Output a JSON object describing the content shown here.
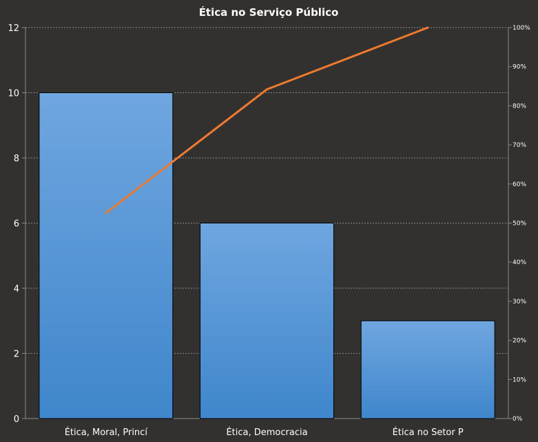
{
  "chart_data": {
    "type": "bar",
    "title": "Ética no Serviço Público",
    "categories": [
      "Ética, Moral, Princí",
      "Ética, Democracia",
      "Ética no Setor P"
    ],
    "series": [
      {
        "type": "bar",
        "axis": "left",
        "values": [
          10,
          6,
          3
        ]
      },
      {
        "type": "line",
        "axis": "right",
        "values": [
          52.6,
          84.2,
          100
        ]
      }
    ],
    "ylim": [
      0,
      12
    ],
    "yticks": [
      "0",
      "2",
      "4",
      "6",
      "8",
      "10",
      "12"
    ],
    "y2lim": [
      0,
      100
    ],
    "y2ticks": [
      "0%",
      "10%",
      "20%",
      "30%",
      "40%",
      "50%",
      "60%",
      "70%",
      "80%",
      "90%",
      "100%"
    ],
    "grid": true,
    "colors": {
      "background": "#333130",
      "bar_top": "#6fa6df",
      "bar_bottom": "#3f86cc",
      "line": "#ec7a2f",
      "grid": "#8a8a8a",
      "text": "#ffffff"
    }
  }
}
